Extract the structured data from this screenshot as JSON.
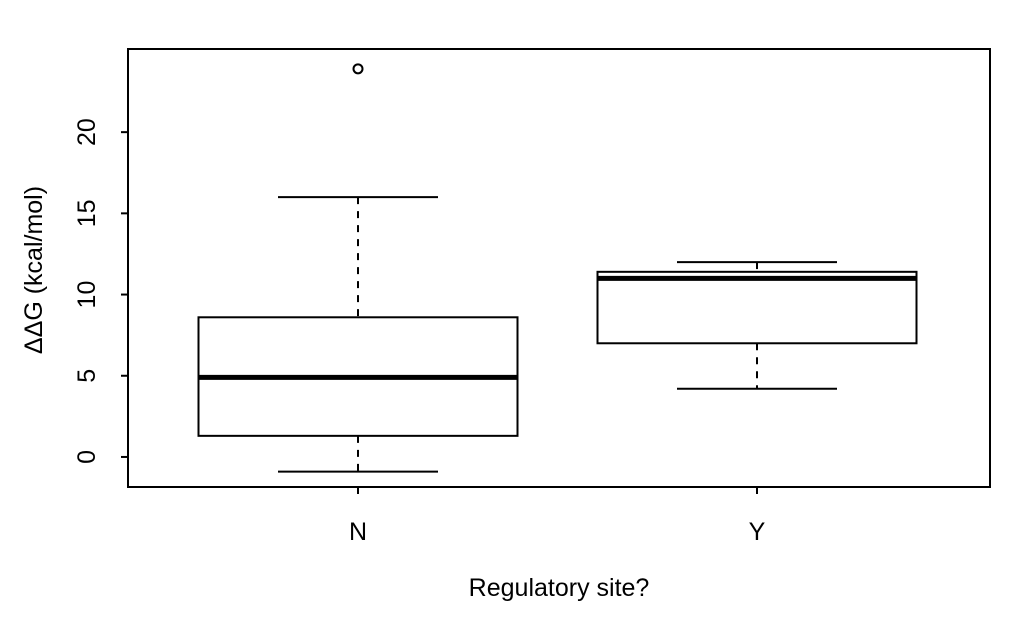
{
  "chart_data": {
    "type": "boxplot",
    "title": "",
    "xlabel": "Regulatory site?",
    "ylabel": "ΔΔG (kcal/mol)",
    "categories": [
      "N",
      "Y"
    ],
    "y_ticks": [
      0,
      5,
      10,
      15,
      20
    ],
    "ylim": [
      -1.85,
      25.12
    ],
    "grid": false,
    "legend": "none",
    "orientation": "vertical",
    "series": [
      {
        "name": "N",
        "lower_whisker": -0.9,
        "q1": 1.3,
        "median": 4.9,
        "q3": 8.6,
        "upper_whisker": 16.0,
        "outliers": [
          23.9
        ]
      },
      {
        "name": "Y",
        "lower_whisker": 4.2,
        "q1": 7.0,
        "median": 11.0,
        "q3": 11.4,
        "upper_whisker": 12.0,
        "outliers": []
      }
    ],
    "colors": {
      "line": "#000000",
      "background": "#ffffff",
      "box_fill": "#ffffff"
    }
  }
}
